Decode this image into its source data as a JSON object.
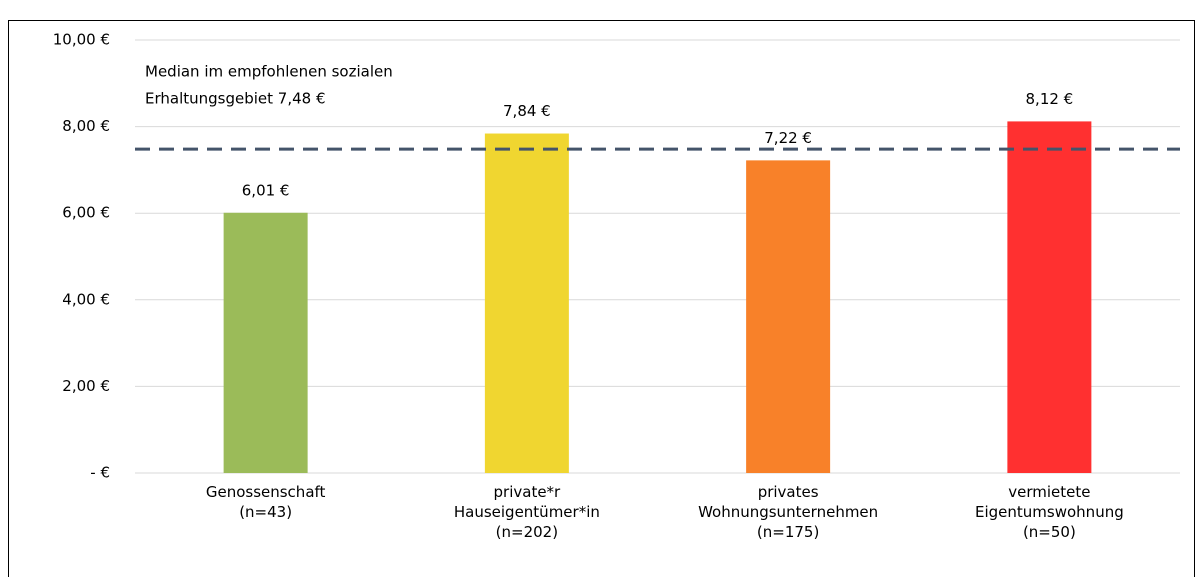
{
  "chart_data": {
    "type": "bar",
    "categories": [
      "Genossenschaft\n(n=43)",
      "private*r\nHauseigentümer*in\n(n=202)",
      "privates\nWohnungsunternehmen\n(n=175)",
      "vermietete\nEigentumswohnung\n(n=50)"
    ],
    "values": [
      6.01,
      7.84,
      7.22,
      8.12
    ],
    "value_labels": [
      "6,01 €",
      "7,84 €",
      "7,22 €",
      "8,12 €"
    ],
    "colors": [
      "#9bbb59",
      "#f0d630",
      "#f88129",
      "#ff3030"
    ],
    "ylim": [
      0,
      10
    ],
    "yticks": [
      {
        "value": 0,
        "label": "-   €"
      },
      {
        "value": 2,
        "label": "2,00 €"
      },
      {
        "value": 4,
        "label": "4,00 €"
      },
      {
        "value": 6,
        "label": "6,00 €"
      },
      {
        "value": 8,
        "label": "8,00 €"
      },
      {
        "value": 10,
        "label": "10,00 €"
      }
    ],
    "grid": true,
    "reference_line": {
      "value": 7.48,
      "color": "#44546a",
      "label": [
        "Median im empfohlenen sozialen",
        "Erhaltungsgebiet 7,48 €"
      ]
    }
  }
}
